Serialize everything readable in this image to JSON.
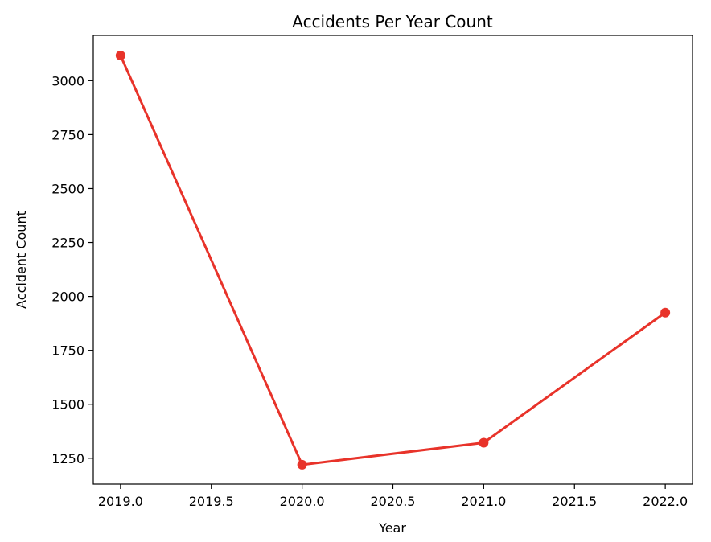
{
  "chart_data": {
    "type": "line",
    "title": "Accidents Per Year Count",
    "xlabel": "Year",
    "ylabel": "Accident Count",
    "xlim": [
      2018.85,
      2022.15
    ],
    "ylim": [
      1130,
      3210
    ],
    "xticks": [
      2019.0,
      2019.5,
      2020.0,
      2020.5,
      2021.0,
      2021.5,
      2022.0
    ],
    "xtick_labels": [
      "2019.0",
      "2019.5",
      "2020.0",
      "2020.5",
      "2021.0",
      "2021.5",
      "2022.0"
    ],
    "yticks": [
      1250,
      1500,
      1750,
      2000,
      2250,
      2500,
      2750,
      3000
    ],
    "ytick_labels": [
      "1250",
      "1500",
      "1750",
      "2000",
      "2250",
      "2500",
      "2750",
      "3000"
    ],
    "grid": false,
    "series": [
      {
        "x": [
          2019,
          2020,
          2021,
          2022
        ],
        "values": [
          3117,
          1220,
          1322,
          1925
        ],
        "color": "#e8332a",
        "marker": "circle"
      }
    ]
  }
}
